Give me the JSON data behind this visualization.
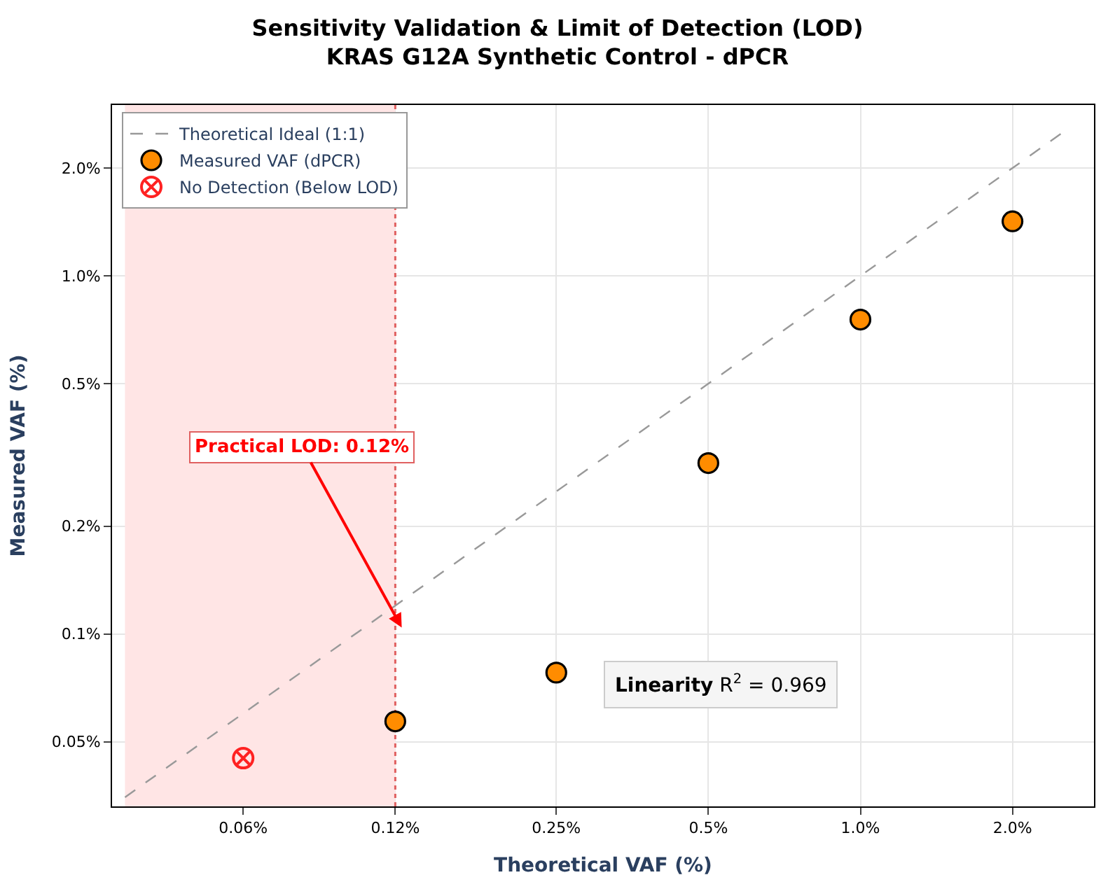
{
  "chart_data": {
    "type": "scatter",
    "title": "Sensitivity Validation & Limit of Detection (LOD)\nKRAS G12A Synthetic Control - dPCR",
    "xlabel": "Theoretical VAF (%)",
    "ylabel": "Measured VAF (%)",
    "log": "xy",
    "grid": true,
    "legend": "top left",
    "xlim": [
      0.033,
      2.9
    ],
    "ylim": [
      0.033,
      3.0
    ],
    "xticks": [
      {
        "value": 0.06,
        "label": "0.06%"
      },
      {
        "value": 0.12,
        "label": "0.12%"
      },
      {
        "value": 0.25,
        "label": "0.25%"
      },
      {
        "value": 0.5,
        "label": "0.5%"
      },
      {
        "value": 1.0,
        "label": "1.0%"
      },
      {
        "value": 2.0,
        "label": "2.0%"
      }
    ],
    "yticks": [
      {
        "value": 0.05,
        "label": "0.05%"
      },
      {
        "value": 0.1,
        "label": "0.1%"
      },
      {
        "value": 0.2,
        "label": "0.2%"
      },
      {
        "value": 0.5,
        "label": "0.5%"
      },
      {
        "value": 1.0,
        "label": "1.0%"
      },
      {
        "value": 2.0,
        "label": "2.0%"
      }
    ],
    "series": [
      {
        "name": "Theoretical Ideal (1:1)",
        "type": "line",
        "line_style": "dashed",
        "marker": "none",
        "color": "#999999",
        "x": [
          0.035,
          2.5
        ],
        "values": [
          0.035,
          2.5
        ]
      },
      {
        "name": "Measured VAF (dPCR)",
        "marker": "circle",
        "color": "#ff8c00",
        "x": [
          0.12,
          0.25,
          0.5,
          1.0,
          2.0
        ],
        "values": [
          0.057,
          0.078,
          0.3,
          0.755,
          1.42
        ]
      },
      {
        "name": "No Detection (Below LOD)",
        "type": "scatter",
        "marker": "cross",
        "color": "#ff2222",
        "x": [
          0.06
        ],
        "values": [
          0.045
        ]
      }
    ],
    "bands": [
      {
        "axis": "x",
        "from": 0.035,
        "to": 0.12,
        "color": "#ffe5e5"
      }
    ],
    "ref_lines": [
      {
        "axis": "x",
        "value": 0.12,
        "color": "#e06060",
        "line_style": "dotted"
      }
    ],
    "annotations": [
      "Practical LOD: 0.12%",
      "Linearity R$^{2}$ = 0.969"
    ]
  }
}
